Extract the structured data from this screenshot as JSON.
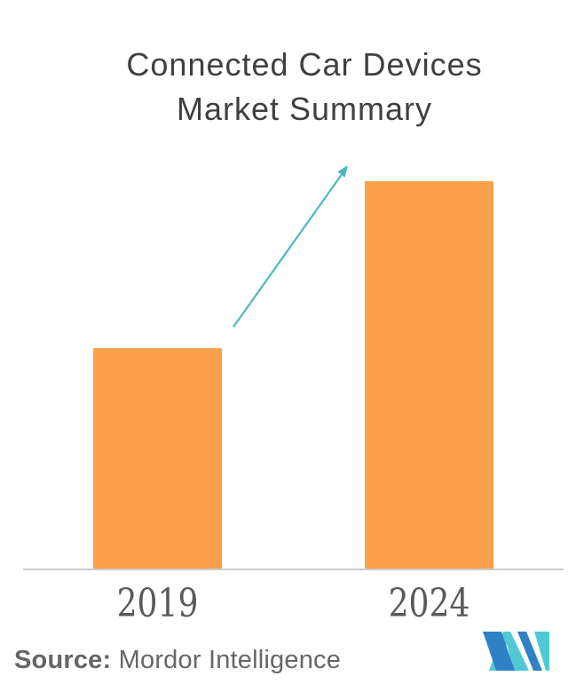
{
  "chart_title": {
    "line1": "Connected Car Devices",
    "line2": "Market Summary"
  },
  "chart_data": {
    "type": "bar",
    "title": "Connected Car Devices Market Summary",
    "categories": [
      "2019",
      "2024"
    ],
    "values": [
      0.57,
      1.0
    ],
    "xlabel": "",
    "ylabel": "",
    "ylim": [
      0,
      1.15
    ],
    "value_axis_shown": false,
    "grid": false,
    "legend": "none",
    "bar_color": "#FAA04B",
    "axis_line_color": "#CBCBCB",
    "annotations": [
      {
        "name": "growth-arrow",
        "shape": "up-right-arrow",
        "color": "#4BB8C1"
      }
    ]
  },
  "source": {
    "label": "Source:",
    "text": " Mordor Intelligence",
    "color": "#666667"
  },
  "logo": {
    "name": "mordor-intelligence-logo",
    "color_teal": "#4FC9D3",
    "color_blue": "#2E81C4"
  },
  "colors": {
    "background": "#FFFFFF",
    "title_text": "#3F3F3F",
    "tick_text": "#59595B"
  }
}
